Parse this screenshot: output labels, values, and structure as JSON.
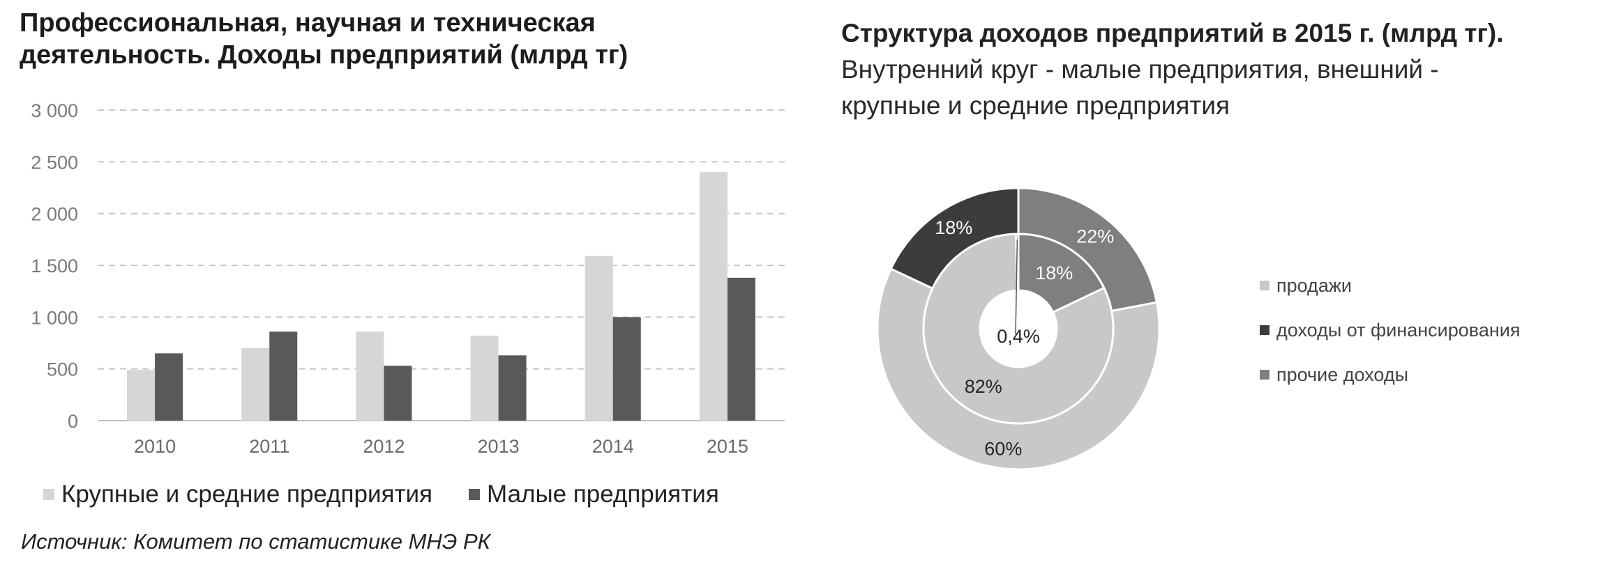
{
  "colors": {
    "large": "#d6d6d6",
    "small": "#595959",
    "sales": "#c8c8c8",
    "finance": "#3c3c3c",
    "other": "#7f7f7f",
    "grid": "#c8c8c8",
    "axis": "#bdbdbd"
  },
  "chart_data": [
    {
      "type": "bar",
      "title": "Профессиональная, научная и техническая деятельность. Доходы предприятий (млрд тг)",
      "title_line1": "Профессиональная, научная и техническая",
      "title_line2": "деятельность. Доходы предприятий (млрд тг)",
      "categories": [
        "2010",
        "2011",
        "2012",
        "2013",
        "2014",
        "2015"
      ],
      "series": [
        {
          "name": "Крупные и средние предприятия",
          "values": [
            490,
            700,
            860,
            820,
            1590,
            2400
          ]
        },
        {
          "name": "Малые предприятия",
          "values": [
            650,
            860,
            530,
            630,
            1000,
            1380
          ]
        }
      ],
      "ylim": [
        0,
        3000
      ],
      "yticks": [
        0,
        500,
        1000,
        1500,
        2000,
        2500,
        3000
      ],
      "ytick_labels": [
        "0",
        "500",
        "1 000",
        "1 500",
        "2 000",
        "2 500",
        "3 000"
      ],
      "grid": true,
      "legend_position": "bottom"
    },
    {
      "type": "pie",
      "variant": "double-donut",
      "title": "Структура доходов предприятий в 2015 г. (млрд тг).",
      "subtitle_line1": "Внутренний круг - малые предприятия, внешний -",
      "subtitle_line2": "крупные и средние предприятия",
      "categories": [
        "продажи",
        "доходы от финансирования",
        "прочие доходы"
      ],
      "rings": [
        {
          "name": "малые предприятия",
          "position": "inner",
          "values": [
            82,
            0.4,
            18
          ],
          "labels": [
            "82%",
            "0,4%",
            "18%"
          ]
        },
        {
          "name": "крупные и средние предприятия",
          "position": "outer",
          "values": [
            60,
            18,
            22
          ],
          "labels": [
            "60%",
            "18%",
            "22%"
          ]
        }
      ],
      "legend_position": "right"
    }
  ],
  "source": "Источник: Комитет по статистике МНЭ РК"
}
